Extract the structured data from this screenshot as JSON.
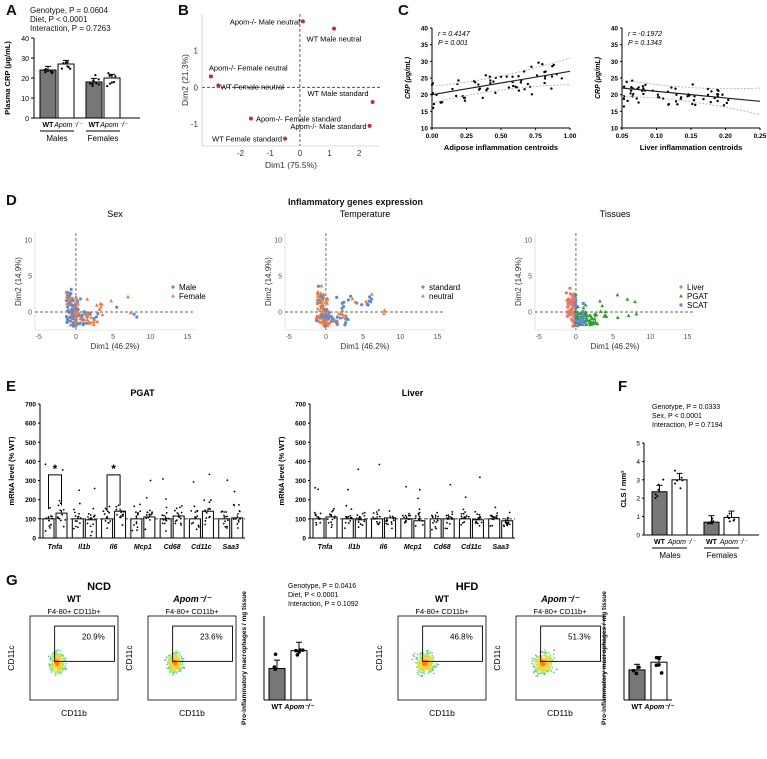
{
  "panels": {
    "A": "A",
    "B": "B",
    "C": "C",
    "D": "D",
    "E": "E",
    "F": "F",
    "G": "G"
  },
  "colors": {
    "dark_bar": "#777777",
    "white_bar": "#ffffff",
    "red": "#d62728",
    "orange": "#f07a3a",
    "blue": "#5b8bd9",
    "green": "#2ca02c",
    "salmon": "#f07565",
    "gray_dot": "#555555"
  },
  "panelA": {
    "stats": [
      "Genotype, P = 0.0604",
      "Diet, P < 0.0001",
      "Interaction, P = 0.7263"
    ],
    "ylabel": "Plasma CRP (μg/mL)",
    "yticks": [
      "0",
      "10",
      "20",
      "30",
      "40"
    ],
    "tick_wt": "WT",
    "tick_apom": "Apom⁻/⁻",
    "group_males": "Males",
    "group_females": "Females"
  },
  "panelB": {
    "xlabel": "Dim1 (75.5%)",
    "ylabel": "Dim2 (21.3%)",
    "xticks": [
      "-2",
      "-1",
      "0",
      "1",
      "2"
    ],
    "yticks": [
      "-1",
      "0",
      "1"
    ],
    "points": [
      {
        "label": "Apom-/- Male neutral"
      },
      {
        "label": "WT Male neutral"
      },
      {
        "label": "Apom-/- Female neutral"
      },
      {
        "label": "WT Female neutral"
      },
      {
        "label": "WT Male standard"
      },
      {
        "label": "Apom-/- Female standard"
      },
      {
        "label": "Apom-/- Male standard"
      },
      {
        "label": "WT Female standard"
      }
    ]
  },
  "panelC": {
    "left": {
      "ylabel": "CRP (μg/mL)",
      "xlabel": "Adipose inflammation centroids",
      "r": "r = 0.4147",
      "p": "P = 0.001",
      "xticks": [
        "0.00",
        "0.25",
        "0.50",
        "0.75",
        "1.00"
      ],
      "yticks": [
        "10",
        "15",
        "20",
        "25",
        "30",
        "35",
        "40"
      ]
    },
    "right": {
      "ylabel": "CRP (μg/mL)",
      "xlabel": "Liver inflammation centroids",
      "r": "r = -0.1972",
      "p": "P = 0.1343",
      "xticks": [
        "0.05",
        "0.10",
        "0.15",
        "0.20",
        "0.25"
      ],
      "yticks": [
        "10",
        "15",
        "20",
        "25",
        "30",
        "35",
        "40"
      ]
    }
  },
  "panelD": {
    "title": "Inflammatory genes expression",
    "xlabel": "Dim1 (46.2%)",
    "ylabel": "Dim2 (14.9%)",
    "xticks": [
      "-5",
      "0",
      "5",
      "10",
      "15"
    ],
    "yticks": [
      "0",
      "5",
      "10"
    ],
    "plots": [
      {
        "title": "Sex",
        "legend": [
          "Male",
          "Female"
        ]
      },
      {
        "title": "Temperature",
        "legend": [
          "standard",
          "neutral"
        ]
      },
      {
        "title": "Tissues",
        "legend": [
          "Liver",
          "PGAT",
          "SCAT"
        ]
      }
    ]
  },
  "panelE": {
    "ylabel": "mRNA level (% WT)",
    "yticks": [
      "0",
      "100",
      "200",
      "300",
      "400",
      "500",
      "600",
      "700"
    ],
    "pgat_title": "PGAT",
    "liver_title": "Liver",
    "genes": [
      "Tnfa",
      "Il1b",
      "Il6",
      "Mcp1",
      "Cd68",
      "Cd11c",
      "Saa3"
    ],
    "sig": "*"
  },
  "panelF": {
    "stats": [
      "Genotype, P = 0.0333",
      "Sex, P < 0.0001",
      "Interaction, P = 0.7194"
    ],
    "ylabel": "CLS / mm²",
    "yticks": [
      "0",
      "1",
      "2",
      "3",
      "4",
      "5"
    ],
    "tick_wt": "WT",
    "tick_apom": "Apom⁻/⁻",
    "group_males": "Males",
    "group_females": "Females"
  },
  "panelG": {
    "ncd": "NCD",
    "hfd": "HFD",
    "stats": [
      "Genotype, P = 0.0416",
      "Diet, P < 0.0001",
      "Interaction, P = 0.1092"
    ],
    "wt": "WT",
    "apom": "Apom⁻/⁻",
    "gate": "F4-80+ CD11b+",
    "xaxis": "CD11b",
    "yaxis": "CD11c",
    "pcts": [
      "20.9%",
      "23.6%",
      "46.8%",
      "51.3%"
    ],
    "bar_ylabel": "Pro-inflammatory macrophages / mg tissue",
    "bar_xticks": [
      "WT",
      "Apom⁻/⁻"
    ]
  },
  "chart_data": [
    {
      "type": "bar",
      "id": "A",
      "categories": [
        "Males WT",
        "Males Apom-/-",
        "Females WT",
        "Females Apom-/-"
      ],
      "values": [
        24,
        27,
        18,
        20
      ],
      "ylim": [
        0,
        40
      ],
      "ylabel": "Plasma CRP (μg/mL)"
    },
    {
      "type": "scatter",
      "id": "B",
      "points": [
        {
          "label": "Apom-/- Male neutral",
          "x": 0.1,
          "y": 1.8
        },
        {
          "label": "WT Male neutral",
          "x": 1.15,
          "y": 1.6
        },
        {
          "label": "Apom-/- Female neutral",
          "x": -3.0,
          "y": 0.3
        },
        {
          "label": "WT Female neutral",
          "x": -2.75,
          "y": 0.05
        },
        {
          "label": "WT Male standard",
          "x": 2.45,
          "y": -0.4
        },
        {
          "label": "Apom-/- Female standard",
          "x": -1.65,
          "y": -0.85
        },
        {
          "label": "Apom-/- Male standard",
          "x": 2.35,
          "y": -1.05
        },
        {
          "label": "WT Female standard",
          "x": -0.5,
          "y": -1.4
        }
      ],
      "xlabel": "Dim1 (75.5%)",
      "ylabel": "Dim2 (21.3%)"
    },
    {
      "type": "scatter",
      "id": "C-left",
      "xlim": [
        0,
        1
      ],
      "ylim": [
        10,
        40
      ],
      "trend": {
        "x": [
          0,
          1
        ],
        "y": [
          20,
          27
        ]
      },
      "xlabel": "Adipose inflammation centroids",
      "ylabel": "CRP (μg/mL)"
    },
    {
      "type": "scatter",
      "id": "C-right",
      "xlim": [
        0.05,
        0.25
      ],
      "ylim": [
        10,
        40
      ],
      "trend": {
        "x": [
          0.05,
          0.25
        ],
        "y": [
          22,
          18
        ]
      },
      "xlabel": "Liver inflammation centroids",
      "ylabel": "CRP (μg/mL)"
    },
    {
      "type": "bar",
      "id": "E-PGAT",
      "categories": [
        "Tnfa",
        "Il1b",
        "Il6",
        "Mcp1",
        "Cd68",
        "Cd11c",
        "Saa3"
      ],
      "series": [
        {
          "values": [
            100,
            100,
            100,
            100,
            100,
            100,
            100
          ]
        },
        {
          "values": [
            130,
            95,
            140,
            110,
            115,
            140,
            105
          ]
        }
      ],
      "ylim": [
        0,
        700
      ]
    },
    {
      "type": "bar",
      "id": "E-Liver",
      "categories": [
        "Tnfa",
        "Il1b",
        "Il6",
        "Mcp1",
        "Cd68",
        "Cd11c",
        "Saa3"
      ],
      "series": [
        {
          "values": [
            100,
            100,
            100,
            100,
            100,
            100,
            100
          ]
        },
        {
          "values": [
            110,
            95,
            105,
            90,
            100,
            95,
            90
          ]
        }
      ],
      "ylim": [
        0,
        700
      ]
    },
    {
      "type": "bar",
      "id": "F",
      "categories": [
        "Males WT",
        "Males Apom-/-",
        "Females WT",
        "Females Apom-/-"
      ],
      "values": [
        2.35,
        3.0,
        0.7,
        0.95
      ],
      "ylim": [
        0,
        5
      ],
      "ylabel": "CLS / mm²"
    },
    {
      "type": "bar",
      "id": "G-NCD",
      "categories": [
        "WT",
        "Apom-/-"
      ],
      "values": [
        3.0,
        4.7
      ],
      "ylabel": "Pro-inflammatory macrophages / mg tissue"
    },
    {
      "type": "bar",
      "id": "G-HFD",
      "categories": [
        "WT",
        "Apom-/-"
      ],
      "values": [
        4.3,
        5.4
      ],
      "ylabel": "Pro-inflammatory macrophages / mg tissue"
    }
  ]
}
